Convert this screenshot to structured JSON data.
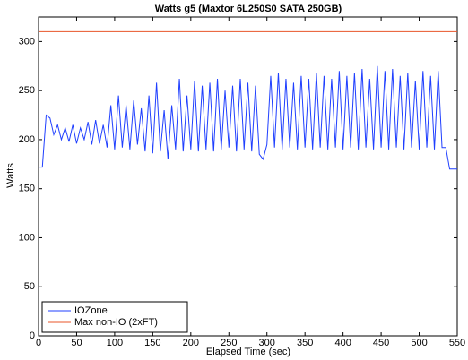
{
  "chart_data": {
    "type": "line",
    "title": "Watts g5 (Maxtor 6L250S0 SATA 250GB)",
    "x_label": "Elapsed Time (sec)",
    "y_label": "Watts",
    "x": [
      0,
      5,
      10,
      15,
      20,
      25,
      30,
      35,
      40,
      45,
      50,
      55,
      60,
      65,
      70,
      75,
      80,
      85,
      90,
      95,
      100,
      105,
      110,
      115,
      120,
      125,
      130,
      135,
      140,
      145,
      150,
      155,
      160,
      165,
      170,
      175,
      180,
      185,
      190,
      195,
      200,
      205,
      210,
      215,
      220,
      225,
      230,
      235,
      240,
      245,
      250,
      255,
      260,
      265,
      270,
      275,
      280,
      285,
      290,
      295,
      300,
      305,
      310,
      315,
      320,
      325,
      330,
      335,
      340,
      345,
      350,
      355,
      360,
      365,
      370,
      375,
      380,
      385,
      390,
      395,
      400,
      405,
      410,
      415,
      420,
      425,
      430,
      435,
      440,
      445,
      450,
      455,
      460,
      465,
      470,
      475,
      480,
      485,
      490,
      495,
      500,
      505,
      510,
      515,
      520,
      525,
      530,
      535,
      540,
      545,
      550
    ],
    "series": [
      {
        "name": "IOZone",
        "color": "#1f3fff",
        "values": [
          172,
          172,
          225,
          222,
          205,
          215,
          200,
          212,
          198,
          215,
          196,
          212,
          200,
          218,
          195,
          220,
          196,
          215,
          192,
          235,
          190,
          245,
          192,
          235,
          190,
          240,
          195,
          232,
          188,
          245,
          186,
          258,
          188,
          230,
          180,
          235,
          190,
          262,
          188,
          245,
          190,
          260,
          188,
          255,
          190,
          258,
          188,
          262,
          190,
          250,
          192,
          255,
          188,
          262,
          190,
          258,
          188,
          255,
          185,
          180,
          195,
          265,
          192,
          268,
          190,
          262,
          192,
          258,
          190,
          265,
          192,
          262,
          190,
          268,
          192,
          265,
          190,
          262,
          192,
          270,
          190,
          265,
          192,
          268,
          190,
          272,
          192,
          262,
          190,
          275,
          192,
          270,
          190,
          272,
          192,
          265,
          190,
          268,
          192,
          260,
          190,
          270,
          192,
          265,
          190,
          270,
          192,
          192,
          170,
          170,
          170
        ]
      },
      {
        "name": "Max non-IO (2xFT)",
        "color": "#e8542a",
        "values": [
          310,
          310,
          310,
          310,
          310,
          310,
          310,
          310,
          310,
          310,
          310,
          310,
          310,
          310,
          310,
          310,
          310,
          310,
          310,
          310,
          310,
          310,
          310,
          310,
          310,
          310,
          310,
          310,
          310,
          310,
          310,
          310,
          310,
          310,
          310,
          310,
          310,
          310,
          310,
          310,
          310,
          310,
          310,
          310,
          310,
          310,
          310,
          310,
          310,
          310,
          310,
          310,
          310,
          310,
          310,
          310,
          310,
          310,
          310,
          310,
          310,
          310,
          310,
          310,
          310,
          310,
          310,
          310,
          310,
          310,
          310,
          310,
          310,
          310,
          310,
          310,
          310,
          310,
          310,
          310,
          310,
          310,
          310,
          310,
          310,
          310,
          310,
          310,
          310,
          310,
          310,
          310,
          310,
          310,
          310,
          310,
          310,
          310,
          310,
          310,
          310,
          310,
          310,
          310,
          310,
          310,
          310,
          310,
          310,
          310,
          310
        ]
      }
    ],
    "xlim": [
      0,
      550
    ],
    "xticks": [
      0,
      50,
      100,
      150,
      200,
      250,
      300,
      350,
      400,
      450,
      500,
      550
    ],
    "ylim": [
      0,
      325
    ],
    "yticks": [
      0,
      50,
      100,
      150,
      200,
      250,
      300
    ],
    "grid": false,
    "legend": "lower left"
  }
}
